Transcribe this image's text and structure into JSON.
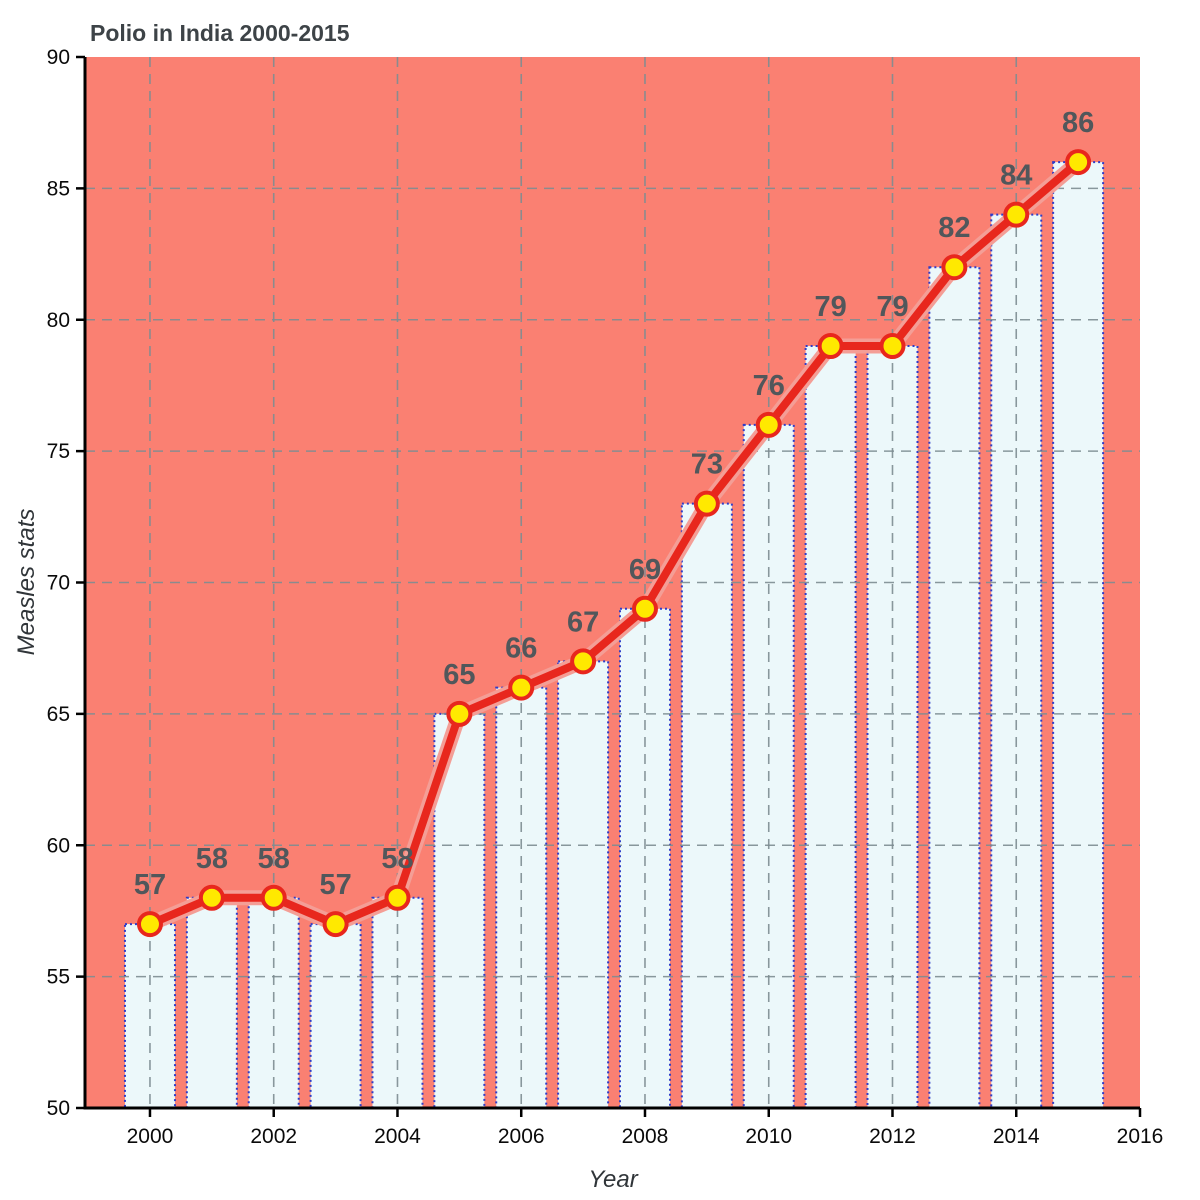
{
  "chart_data": {
    "type": "bar",
    "title": "Polio in India 2000-2015",
    "xlabel": "Year",
    "ylabel": "Measles stats",
    "categories": [
      2000,
      2001,
      2002,
      2003,
      2004,
      2005,
      2006,
      2007,
      2008,
      2009,
      2010,
      2011,
      2012,
      2013,
      2014,
      2015
    ],
    "values": [
      57,
      58,
      58,
      57,
      58,
      65,
      66,
      67,
      69,
      73,
      76,
      79,
      79,
      82,
      84,
      86
    ],
    "ylim": [
      50,
      90
    ],
    "yticks": [
      50,
      55,
      60,
      65,
      70,
      75,
      80,
      85,
      90
    ],
    "xticks": [
      2000,
      2002,
      2004,
      2006,
      2008,
      2010,
      2012,
      2014,
      2016
    ],
    "grid": true,
    "legend": false,
    "series_style": "bars with overlaid line and circular markers, value labels above each point",
    "colors": {
      "plot_background": "#fa8072",
      "bar_fill": "#ecf8fa",
      "bar_border": "#2e3cc8",
      "line": "#e8271d",
      "line_halo": "#f49e96",
      "marker_fill": "#ffe900",
      "marker_stroke": "#e8271d",
      "value_label": "#51575b",
      "grid": "#7e8d92",
      "axis": "#000000"
    }
  }
}
